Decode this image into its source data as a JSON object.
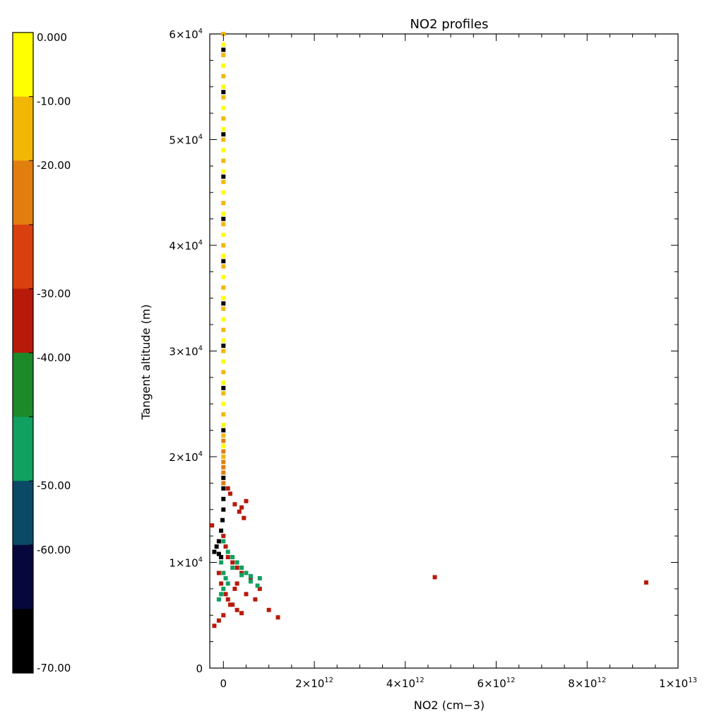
{
  "chart_data": {
    "type": "scatter",
    "title": "NO2 profiles",
    "xlabel": "NO2 (cm−3)",
    "ylabel": "Tangent altitude (m)",
    "xlim": [
      -300000000000.0,
      10000000000000.0
    ],
    "ylim": [
      0,
      60000
    ],
    "x_ticks": [
      {
        "value": 0,
        "label": "0"
      },
      {
        "value": 2000000000000.0,
        "label": "2×10",
        "exp": "12"
      },
      {
        "value": 4000000000000.0,
        "label": "4×10",
        "exp": "12"
      },
      {
        "value": 6000000000000.0,
        "label": "6×10",
        "exp": "12"
      },
      {
        "value": 8000000000000.0,
        "label": "8×10",
        "exp": "12"
      },
      {
        "value": 10000000000000.0,
        "label": "1×10",
        "exp": "13"
      }
    ],
    "y_ticks": [
      {
        "value": 0,
        "label": "0"
      },
      {
        "value": 10000,
        "label": "1×10",
        "exp": "4"
      },
      {
        "value": 20000,
        "label": "2×10",
        "exp": "4"
      },
      {
        "value": 30000,
        "label": "3×10",
        "exp": "4"
      },
      {
        "value": 40000,
        "label": "4×10",
        "exp": "4"
      },
      {
        "value": 50000,
        "label": "5×10",
        "exp": "4"
      },
      {
        "value": 60000,
        "label": "6×10",
        "exp": "4"
      }
    ],
    "colorbar": {
      "bands": [
        {
          "value": 0.0,
          "label": "0.000",
          "color": "#ffff00"
        },
        {
          "value": -10.0,
          "label": "-10.00",
          "color": "#f2b705"
        },
        {
          "value": -20.0,
          "label": "-20.00",
          "color": "#e27d0f"
        },
        {
          "value": -25.0,
          "label": "",
          "color": "#d94010"
        },
        {
          "value": -30.0,
          "label": "-30.00",
          "color": "#b81a0a"
        },
        {
          "value": -40.0,
          "label": "-40.00",
          "color": "#1c8a28"
        },
        {
          "value": -45.0,
          "label": "",
          "color": "#10a060"
        },
        {
          "value": -50.0,
          "label": "-50.00",
          "color": "#0b4a66"
        },
        {
          "value": -60.0,
          "label": "-60.00",
          "color": "#06083d"
        },
        {
          "value": -70.0,
          "label": "-70.00",
          "color": "#000000"
        }
      ]
    },
    "series": [
      {
        "color": "#f2b705",
        "points": [
          [
            0,
            60000
          ],
          [
            0,
            58000
          ],
          [
            0,
            56000
          ],
          [
            0,
            54000
          ],
          [
            0,
            52000
          ],
          [
            0,
            50000
          ],
          [
            0,
            48000
          ],
          [
            0,
            46000
          ],
          [
            0,
            44000
          ],
          [
            0,
            42000
          ],
          [
            0,
            40000
          ],
          [
            0,
            38000
          ],
          [
            0,
            36000
          ],
          [
            0,
            34000
          ],
          [
            0,
            32000
          ],
          [
            0,
            30000
          ],
          [
            0,
            28000
          ],
          [
            0,
            26000
          ],
          [
            0,
            24000
          ],
          [
            0,
            22000
          ],
          [
            0,
            20000
          ]
        ]
      },
      {
        "color": "#ffff00",
        "points": [
          [
            0,
            59000
          ],
          [
            0,
            57000
          ],
          [
            0,
            55000
          ],
          [
            0,
            53000
          ],
          [
            0,
            51000
          ],
          [
            0,
            49000
          ],
          [
            0,
            47000
          ],
          [
            0,
            45000
          ],
          [
            0,
            43000
          ],
          [
            0,
            41000
          ],
          [
            0,
            39000
          ],
          [
            0,
            37000
          ],
          [
            0,
            35000
          ],
          [
            0,
            33000
          ],
          [
            0,
            31000
          ],
          [
            0,
            29000
          ],
          [
            0,
            27000
          ],
          [
            0,
            25000
          ],
          [
            0,
            23000
          ],
          [
            0,
            21000
          ]
        ]
      },
      {
        "color": "#000000",
        "points": [
          [
            0,
            58500
          ],
          [
            0,
            54500
          ],
          [
            0,
            50500
          ],
          [
            0,
            46500
          ],
          [
            0,
            42500
          ],
          [
            0,
            38500
          ],
          [
            0,
            34500
          ],
          [
            0,
            30500
          ],
          [
            0,
            26500
          ],
          [
            0,
            22500
          ],
          [
            0,
            18000
          ],
          [
            0,
            17000
          ],
          [
            0,
            16000
          ],
          [
            0,
            15000
          ],
          [
            -20000000000.0,
            14000
          ],
          [
            -50000000000.0,
            13000
          ],
          [
            -100000000000.0,
            12000
          ],
          [
            -150000000000.0,
            11500
          ],
          [
            -200000000000.0,
            11000
          ],
          [
            -100000000000.0,
            10800
          ],
          [
            -50000000000.0,
            10500
          ]
        ]
      },
      {
        "color": "#e27d0f",
        "points": [
          [
            0,
            21500
          ],
          [
            0,
            20500
          ],
          [
            0,
            19500
          ],
          [
            0,
            19000
          ],
          [
            0,
            18500
          ],
          [
            0,
            17500
          ]
        ]
      },
      {
        "color": "#b81a0a",
        "points": [
          [
            100000000000.0,
            17000
          ],
          [
            150000000000.0,
            16500
          ],
          [
            250000000000.0,
            15500
          ],
          [
            350000000000.0,
            14800
          ],
          [
            450000000000.0,
            14200
          ],
          [
            400000000000.0,
            15200
          ],
          [
            500000000000.0,
            15800
          ],
          [
            -250000000000.0,
            13500
          ],
          [
            0,
            12500
          ],
          [
            50000000000.0,
            11500
          ],
          [
            100000000000.0,
            10500
          ],
          [
            200000000000.0,
            10000
          ],
          [
            300000000000.0,
            9500
          ],
          [
            400000000000.0,
            9000
          ],
          [
            600000000000.0,
            8500
          ],
          [
            800000000000.0,
            7500
          ],
          [
            -100000000000.0,
            9000
          ],
          [
            -50000000000.0,
            8000
          ],
          [
            50000000000.0,
            7000
          ],
          [
            100000000000.0,
            6500
          ],
          [
            200000000000.0,
            6000
          ],
          [
            300000000000.0,
            5500
          ],
          [
            400000000000.0,
            5200
          ],
          [
            500000000000.0,
            7000
          ],
          [
            700000000000.0,
            6500
          ],
          [
            1000000000000.0,
            5500
          ],
          [
            1200000000000.0,
            4800
          ],
          [
            -200000000000.0,
            4000
          ],
          [
            -100000000000.0,
            4500
          ],
          [
            0,
            5000
          ],
          [
            150000000000.0,
            6000
          ],
          [
            250000000000.0,
            7500
          ],
          [
            300000000000.0,
            8000
          ],
          [
            4650000000000.0,
            8600
          ],
          [
            9300000000000.0,
            8100
          ]
        ]
      },
      {
        "color": "#10a060",
        "points": [
          [
            0,
            12000
          ],
          [
            100000000000.0,
            11000
          ],
          [
            200000000000.0,
            10500
          ],
          [
            300000000000.0,
            10000
          ],
          [
            400000000000.0,
            9500
          ],
          [
            500000000000.0,
            9000
          ],
          [
            600000000000.0,
            8700
          ],
          [
            800000000000.0,
            8500
          ],
          [
            -50000000000.0,
            10000
          ],
          [
            0,
            9000
          ],
          [
            50000000000.0,
            8500
          ],
          [
            100000000000.0,
            8000
          ],
          [
            0,
            7500
          ],
          [
            -50000000000.0,
            7000
          ],
          [
            -100000000000.0,
            6500
          ],
          [
            200000000000.0,
            9500
          ],
          [
            400000000000.0,
            8800
          ],
          [
            600000000000.0,
            8200
          ],
          [
            750000000000.0,
            7800
          ]
        ]
      }
    ]
  }
}
